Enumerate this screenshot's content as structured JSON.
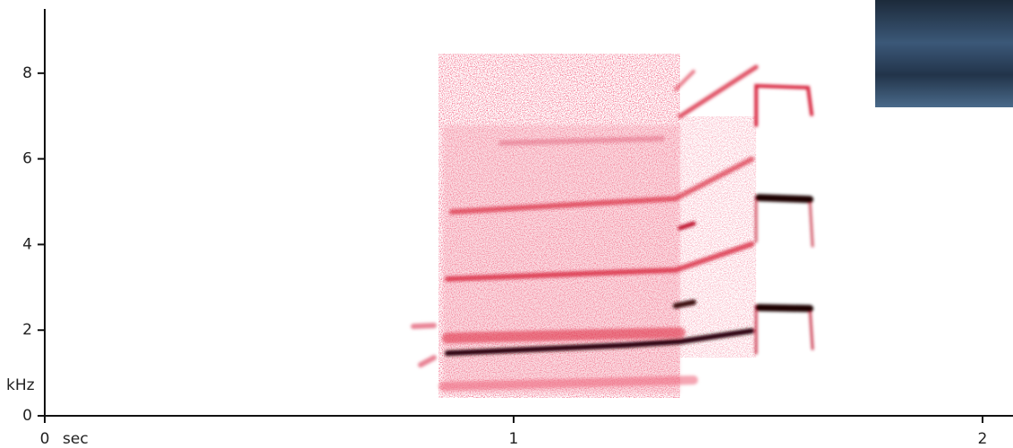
{
  "chart_data": {
    "type": "spectrogram",
    "x_label": "sec",
    "y_label": "kHz",
    "xlim": [
      0,
      2.065
    ],
    "xticks": [
      0,
      1,
      2
    ],
    "ylim": [
      0,
      9.5
    ],
    "yticks": [
      0,
      2,
      4,
      6,
      8
    ]
  }
}
